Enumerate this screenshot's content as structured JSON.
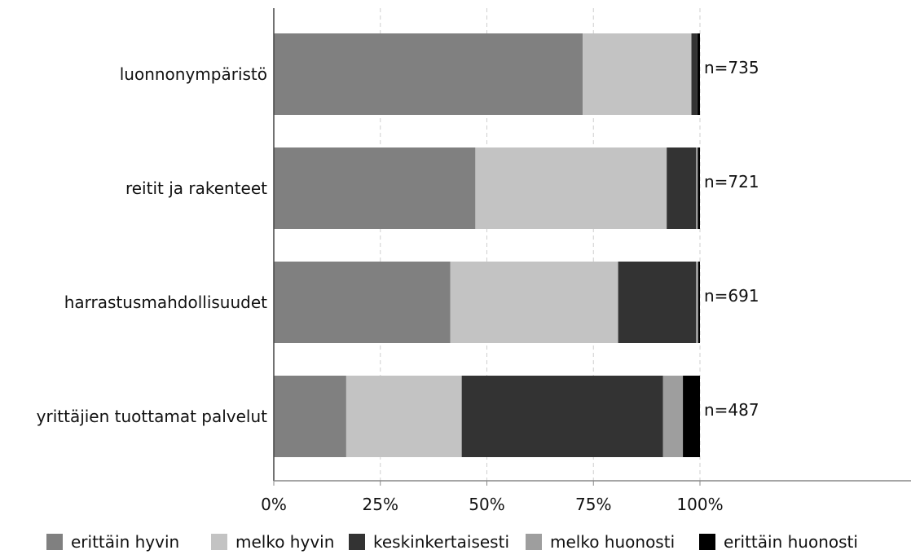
{
  "chart_data": {
    "type": "bar",
    "orientation": "horizontal",
    "stacked": true,
    "categories": [
      "luonnonympäristö",
      "reitit ja rakenteet",
      "harrastusmahdollisuudet",
      "yrittäjien tuottamat palvelut"
    ],
    "n_labels": [
      "n=735",
      "n=721",
      "n=691",
      "n=487"
    ],
    "series": [
      {
        "name": "erittäin hyvin",
        "color": "#808080",
        "values": [
          72.5,
          47.3,
          41.4,
          17.0
        ]
      },
      {
        "name": "melko hyvin",
        "color": "#c3c3c3",
        "values": [
          25.5,
          44.9,
          39.4,
          27.1
        ]
      },
      {
        "name": "keskinkertaisesti",
        "color": "#333333",
        "values": [
          1.4,
          6.9,
          18.3,
          47.2
        ]
      },
      {
        "name": "melko huonosti",
        "color": "#9e9e9e",
        "values": [
          0.0,
          0.4,
          0.5,
          4.7
        ]
      },
      {
        "name": "erittäin huonosti",
        "color": "#000000",
        "values": [
          0.6,
          0.5,
          0.4,
          4.0
        ]
      }
    ],
    "xlim": [
      0,
      100
    ],
    "x_ticks": [
      "0%",
      "25%",
      "50%",
      "75%",
      "100%"
    ],
    "grid": "vertical dashed",
    "legend_position": "bottom",
    "title": "",
    "xlabel": "",
    "ylabel": ""
  }
}
